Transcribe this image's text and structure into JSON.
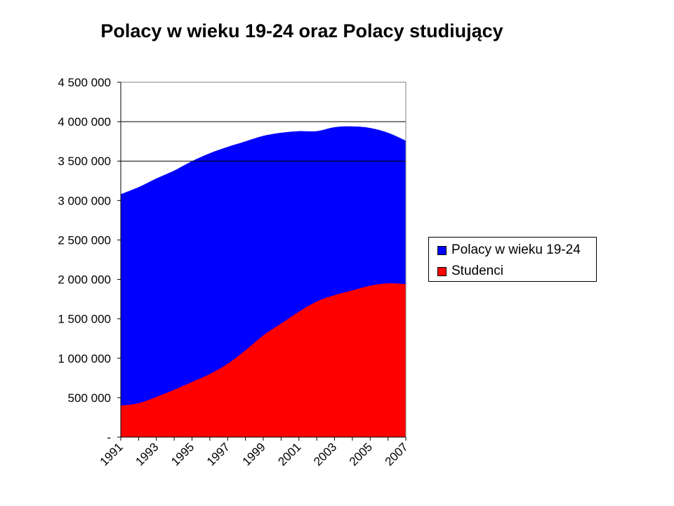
{
  "chart_data": {
    "type": "area",
    "title": "Polacy w wieku 19-24 oraz Polacy studiujący",
    "xlabel": "",
    "ylabel": "",
    "x": [
      1991,
      1992,
      1993,
      1994,
      1995,
      1996,
      1997,
      1998,
      1999,
      2000,
      2001,
      2002,
      2003,
      2004,
      2005,
      2006,
      2007
    ],
    "x_tick_labels": [
      "1991",
      "1993",
      "1995",
      "1997",
      "1999",
      "2001",
      "2003",
      "2005",
      "2007"
    ],
    "y_tick_labels": [
      "-",
      "500 000",
      "1 000 000",
      "1 500 000",
      "2 000 000",
      "2 500 000",
      "3 000 000",
      "3 500 000",
      "4 000 000",
      "4 500 000"
    ],
    "ylim": [
      0,
      4500000
    ],
    "grid": "horizontal lines at 3 500 000 and 4 000 000",
    "legend_placement": "right",
    "series": [
      {
        "name": "Polacy w wieku 19-24",
        "color": "#0000ff",
        "values": [
          3080000,
          3170000,
          3280000,
          3380000,
          3500000,
          3600000,
          3680000,
          3750000,
          3820000,
          3860000,
          3880000,
          3880000,
          3930000,
          3940000,
          3920000,
          3860000,
          3760000
        ]
      },
      {
        "name": "Studenci",
        "color": "#ff0000",
        "values": [
          400000,
          430000,
          510000,
          600000,
          700000,
          800000,
          930000,
          1100000,
          1290000,
          1440000,
          1590000,
          1720000,
          1800000,
          1860000,
          1920000,
          1950000,
          1940000
        ]
      }
    ]
  }
}
